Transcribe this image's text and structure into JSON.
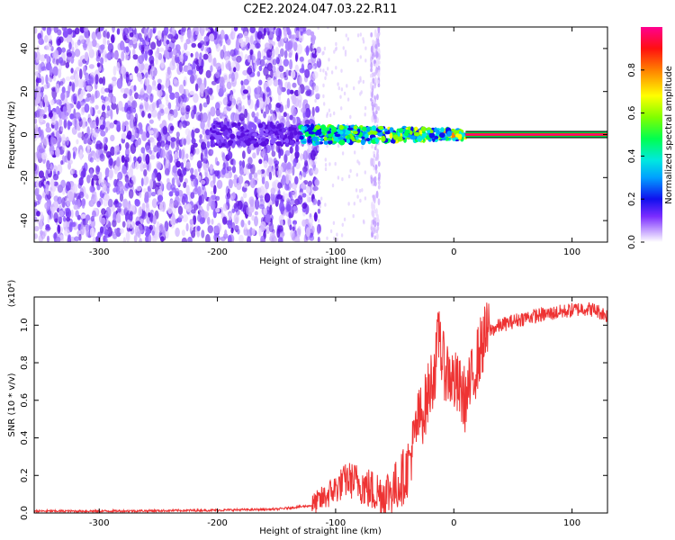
{
  "title": "C2E2.2024.047.03.22.R11",
  "chart_data": [
    {
      "type": "heatmap",
      "xlabel": "Height of straight line (km)",
      "ylabel": "Frequency (Hz)",
      "xlim": [
        -355,
        130
      ],
      "ylim": [
        -50,
        50
      ],
      "xticks": [
        -300,
        -200,
        -100,
        0,
        100
      ],
      "xtick_labels": [
        "-300",
        "-200",
        "-100",
        "0",
        "100"
      ],
      "yticks": [
        -40,
        -20,
        0,
        20,
        40
      ],
      "ytick_labels": [
        "-40",
        "-20",
        "0",
        "20",
        "40"
      ],
      "colorbar": {
        "label": "Normalized spectral amplitude",
        "range": [
          0,
          1
        ],
        "ticks": [
          0,
          0.2,
          0.4,
          0.6,
          0.8
        ],
        "tick_labels": [
          "0.0",
          "0.2",
          "0.4",
          "0.6",
          "0.8"
        ]
      },
      "features": {
        "noise_region_x": [
          -355,
          -120
        ],
        "noise_stripe_x": [
          -70,
          -63
        ],
        "signal_cluster_x": [
          -205,
          10
        ],
        "signal_cluster_y": [
          -12,
          10
        ],
        "constant_line_x": [
          10,
          130
        ],
        "constant_line_y": 0
      }
    },
    {
      "type": "line",
      "xlabel": "Height of straight line (km)",
      "ylabel": "SNR (10 * v/v)",
      "yscale_label": "(x10⁴)",
      "xlim": [
        -355,
        130
      ],
      "ylim": [
        0,
        1.15
      ],
      "xticks": [
        -300,
        -200,
        -100,
        0,
        100
      ],
      "xtick_labels": [
        "-300",
        "-200",
        "-100",
        "0",
        "100"
      ],
      "yticks": [
        0,
        0.2,
        0.4,
        0.6,
        0.8,
        1.0
      ],
      "ytick_labels": [
        "0.0",
        "0.2",
        "0.4",
        "0.6",
        "0.8",
        "1.0"
      ],
      "color": "#ee3333",
      "series": [
        {
          "x": [
            -355,
            -300,
            -250,
            -200,
            -150,
            -120,
            -110,
            -100,
            -90,
            -80,
            -70,
            -60,
            -50,
            -40,
            -35,
            -30,
            -25,
            -20,
            -15,
            -12,
            -10,
            -5,
            0,
            5,
            10,
            15,
            20,
            25,
            30,
            40,
            50,
            60,
            70,
            80,
            90,
            100,
            110,
            120,
            130
          ],
          "y": [
            0.01,
            0.01,
            0.012,
            0.015,
            0.02,
            0.04,
            0.08,
            0.13,
            0.18,
            0.16,
            0.12,
            0.1,
            0.13,
            0.22,
            0.35,
            0.5,
            0.55,
            0.68,
            0.8,
            1.0,
            0.8,
            0.75,
            0.7,
            0.65,
            0.6,
            0.7,
            0.82,
            0.92,
            0.97,
            1.0,
            1.02,
            1.04,
            1.05,
            1.06,
            1.07,
            1.08,
            1.09,
            1.08,
            1.05
          ]
        }
      ]
    }
  ]
}
